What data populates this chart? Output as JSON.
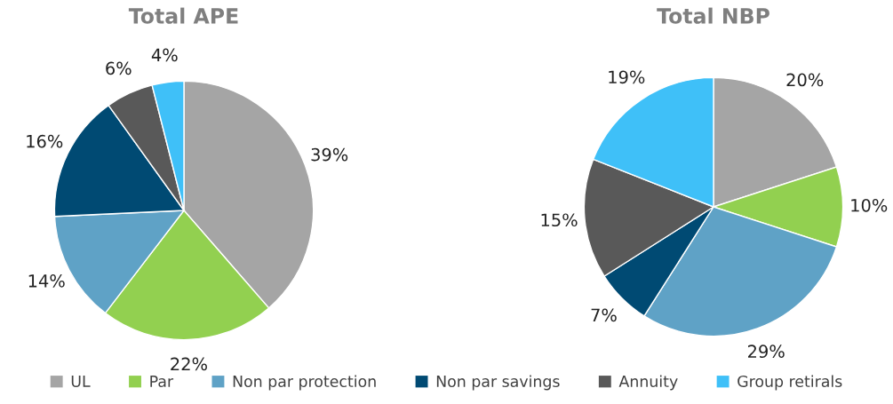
{
  "chart_data": [
    {
      "type": "pie",
      "title": "Total APE",
      "categories": [
        "UL",
        "Par",
        "Non par protection",
        "Non par savings",
        "Annuity",
        "Group retirals"
      ],
      "values": [
        39,
        22,
        14,
        16,
        6,
        4
      ],
      "value_labels": [
        "39%",
        "22%",
        "14%",
        "16%",
        "6%",
        "4%"
      ],
      "colors": [
        "#a5a5a5",
        "#92d050",
        "#5fa2c6",
        "#004a73",
        "#595959",
        "#3fc0f8"
      ],
      "legend": "bottom"
    },
    {
      "type": "pie",
      "title": "Total NBP",
      "categories": [
        null,
        null,
        null,
        null,
        null,
        null
      ],
      "values": [
        20,
        10,
        29,
        7,
        15,
        19
      ],
      "value_labels": [
        "20%",
        "10%",
        "29%",
        "7%",
        "15%",
        "19%"
      ],
      "colors": [
        "#a5a5a5",
        "#92d050",
        "#5fa2c6",
        "#004a73",
        "#595959",
        "#3fc0f8"
      ]
    }
  ]
}
